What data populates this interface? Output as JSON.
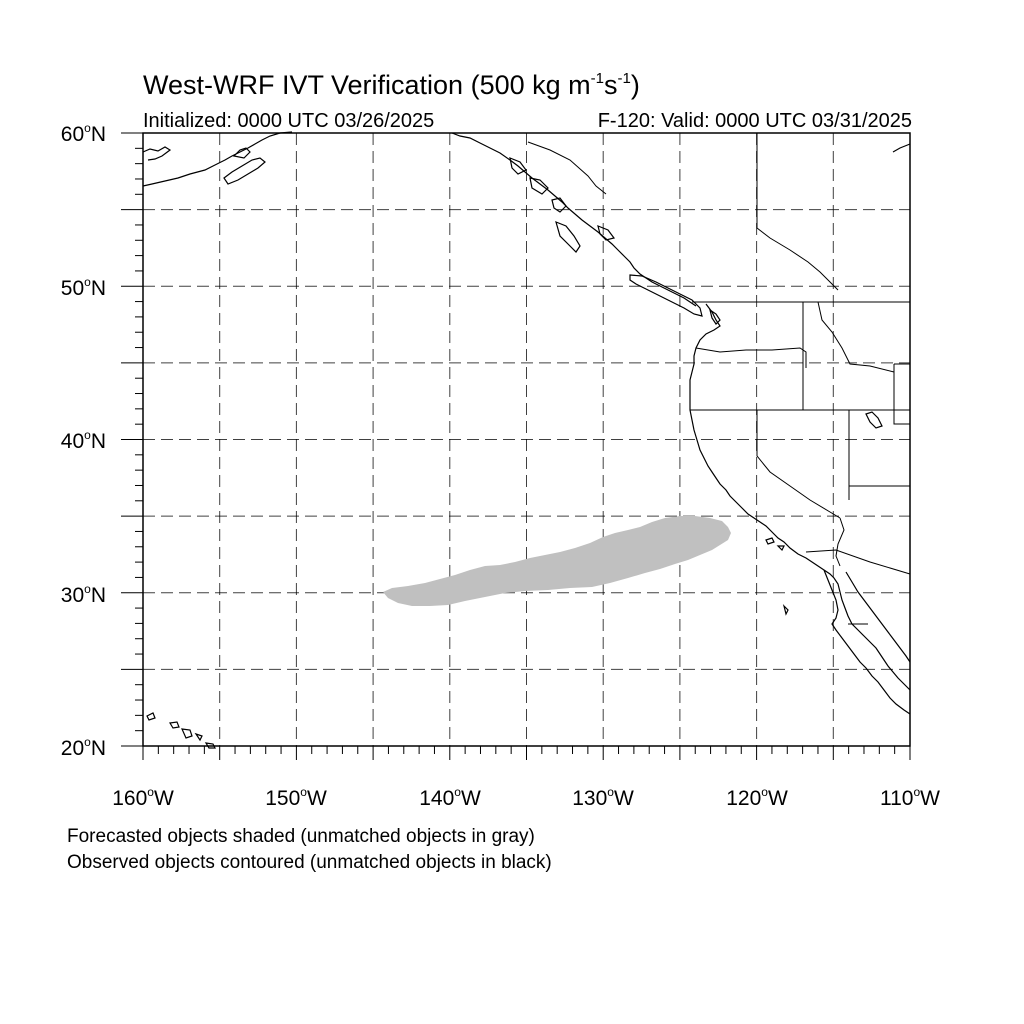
{
  "title": {
    "text": "West-WRF IVT Verification (500 kg m",
    "exp1": "-1",
    "mid": "s",
    "exp2": "-1",
    "end": ")"
  },
  "subtitle": {
    "initialized": "Initialized: 0000 UTC 03/26/2025",
    "valid": "F-120: Valid: 0000 UTC 03/31/2025"
  },
  "axes": {
    "lat_labels": [
      {
        "value": "60",
        "suffix": "N"
      },
      {
        "value": "50",
        "suffix": "N"
      },
      {
        "value": "40",
        "suffix": "N"
      },
      {
        "value": "30",
        "suffix": "N"
      },
      {
        "value": "20",
        "suffix": "N"
      }
    ],
    "lon_labels": [
      {
        "value": "160",
        "suffix": "W"
      },
      {
        "value": "150",
        "suffix": "W"
      },
      {
        "value": "140",
        "suffix": "W"
      },
      {
        "value": "130",
        "suffix": "W"
      },
      {
        "value": "120",
        "suffix": "W"
      },
      {
        "value": "110",
        "suffix": "W"
      }
    ],
    "lat_range": [
      20,
      60
    ],
    "lon_range": [
      -160,
      -110
    ],
    "gridline_interval_deg": 5,
    "gridlines": "dashed"
  },
  "forecast_object": {
    "description_color": "#c0c0c0",
    "matched": false,
    "approx_lon_range": [
      -144.5,
      -122
    ],
    "approx_lat_range": [
      29.2,
      34.9
    ]
  },
  "notes": {
    "line1": "Forecasted objects shaded (unmatched objects in gray)",
    "line2": "Observed objects contoured (unmatched objects in black)"
  },
  "colors": {
    "background": "#ffffff",
    "frame": "#000000",
    "forecast_fill": "#c0c0c0",
    "grid": "#555555"
  }
}
